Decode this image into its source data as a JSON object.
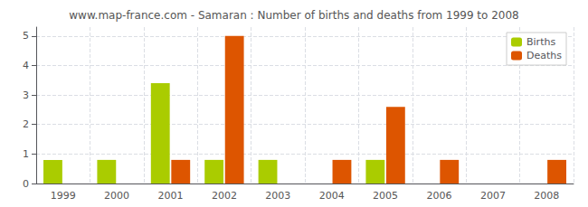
{
  "chart_data": {
    "type": "bar",
    "title": "www.map-france.com - Samaran : Number of births and deaths from 1999 to 2008",
    "categories": [
      "1999",
      "2000",
      "2001",
      "2002",
      "2003",
      "2004",
      "2005",
      "2006",
      "2007",
      "2008"
    ],
    "series": [
      {
        "name": "Births",
        "color": "#aacc00",
        "values": [
          0.8,
          0.8,
          3.4,
          0.8,
          0.8,
          0.0,
          0.8,
          0.0,
          0.0,
          0.0
        ]
      },
      {
        "name": "Deaths",
        "color": "#dd5500",
        "values": [
          0.0,
          0.0,
          0.8,
          5.0,
          0.0,
          0.8,
          2.6,
          0.8,
          0.0,
          0.8
        ]
      }
    ],
    "ylim": [
      0,
      5.3
    ],
    "yticks": [
      0,
      1,
      2,
      3,
      4,
      5
    ],
    "grid": true,
    "legend": "upper right"
  }
}
